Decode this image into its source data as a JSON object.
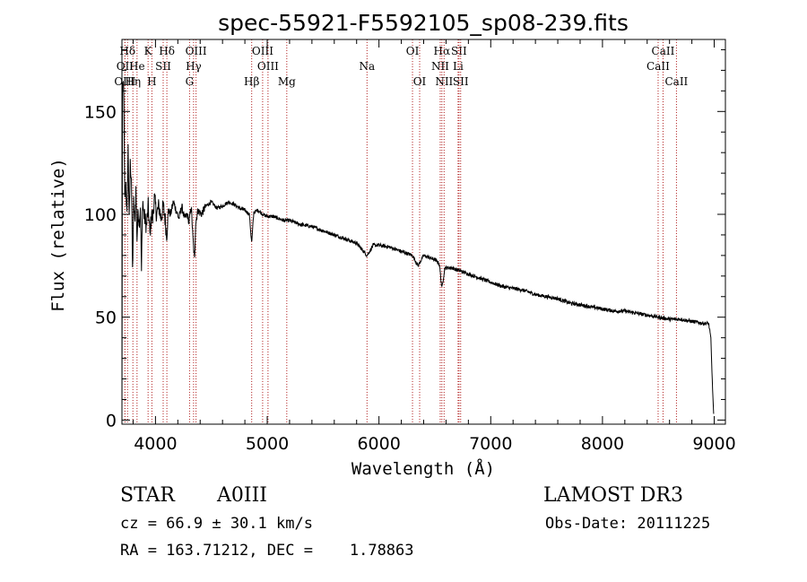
{
  "chart_data": {
    "type": "line",
    "title": "spec-55921-F5592105_sp08-239.fits",
    "xlabel": "Wavelength (Å)",
    "ylabel": "Flux (relative)",
    "xlim": [
      3700,
      9100
    ],
    "ylim": [
      -2,
      185
    ],
    "x_ticks": [
      4000,
      5000,
      6000,
      7000,
      8000,
      9000
    ],
    "y_ticks": [
      0,
      50,
      100,
      150
    ],
    "series": [
      {
        "name": "flux",
        "x": [
          3700,
          3705,
          3715,
          3725,
          3735,
          3745,
          3755,
          3765,
          3775,
          3785,
          3795,
          3805,
          3815,
          3825,
          3835,
          3845,
          3855,
          3865,
          3875,
          3885,
          3895,
          3905,
          3920,
          3935,
          3950,
          3965,
          3975,
          3990,
          4010,
          4030,
          4050,
          4070,
          4090,
          4101,
          4115,
          4135,
          4160,
          4185,
          4210,
          4235,
          4260,
          4285,
          4300,
          4320,
          4340,
          4350,
          4360,
          4380,
          4410,
          4450,
          4500,
          4550,
          4600,
          4650,
          4700,
          4750,
          4800,
          4840,
          4861,
          4880,
          4920,
          4960,
          5000,
          5050,
          5100,
          5150,
          5200,
          5250,
          5300,
          5400,
          5500,
          5600,
          5700,
          5800,
          5893,
          5950,
          6000,
          6100,
          6200,
          6300,
          6350,
          6400,
          6450,
          6500,
          6540,
          6563,
          6590,
          6650,
          6700,
          6750,
          6800,
          6900,
          7000,
          7100,
          7200,
          7300,
          7400,
          7500,
          7600,
          7700,
          7800,
          7900,
          8000,
          8100,
          8200,
          8300,
          8400,
          8500,
          8600,
          8700,
          8800,
          8900,
          8950,
          8970,
          8985,
          8995
        ],
        "values": [
          0,
          158,
          165,
          108,
          115,
          98,
          132,
          96,
          124,
          118,
          72,
          106,
          96,
          112,
          88,
          102,
          96,
          104,
          72,
          108,
          100,
          98,
          94,
          104,
          90,
          100,
          98,
          108,
          100,
          104,
          98,
          104,
          96,
          88,
          102,
          100,
          106,
          102,
          98,
          104,
          98,
          100,
          96,
          104,
          84,
          78,
          96,
          102,
          100,
          104,
          106,
          103,
          104,
          106,
          105,
          103,
          102,
          100,
          86,
          101,
          102,
          100,
          99,
          99,
          98,
          97,
          97,
          96,
          95,
          94,
          92,
          90,
          88,
          86,
          80,
          85,
          85,
          84,
          82,
          80,
          75,
          80,
          79,
          78,
          76,
          64,
          74,
          74,
          73,
          72,
          71,
          69,
          67,
          65,
          64,
          63,
          61,
          60,
          59,
          57,
          56,
          55,
          54,
          53,
          53,
          52,
          51,
          50,
          49,
          49,
          48,
          47,
          47,
          40,
          15,
          3
        ]
      }
    ],
    "line_markers": [
      {
        "label": "Hδ",
        "x": 3750,
        "row": 1
      },
      {
        "label": "OII",
        "x": 3727,
        "row": 2
      },
      {
        "label": "OIII",
        "x": 3727,
        "row": 3
      },
      {
        "label": "K",
        "x": 3934,
        "row": 1
      },
      {
        "label": "He",
        "x": 3835,
        "row": 2
      },
      {
        "label": "Hη",
        "x": 3798,
        "row": 3
      },
      {
        "label": "SII",
        "x": 4069,
        "row": 2
      },
      {
        "label": "H",
        "x": 3968,
        "row": 3
      },
      {
        "label": "Hδ",
        "x": 4102,
        "row": 1
      },
      {
        "label": "OIII",
        "x": 4363,
        "row": 1
      },
      {
        "label": "Hγ",
        "x": 4341,
        "row": 2
      },
      {
        "label": "G",
        "x": 4305,
        "row": 3
      },
      {
        "label": "OIII",
        "x": 4959,
        "row": 1
      },
      {
        "label": "OIII",
        "x": 5007,
        "row": 2
      },
      {
        "label": "Hβ",
        "x": 4861,
        "row": 3
      },
      {
        "label": "Mg",
        "x": 5175,
        "row": 3
      },
      {
        "label": "Na",
        "x": 5893,
        "row": 2
      },
      {
        "label": "OI",
        "x": 6300,
        "row": 1
      },
      {
        "label": "OI",
        "x": 6364,
        "row": 3
      },
      {
        "label": "Hα",
        "x": 6563,
        "row": 1
      },
      {
        "label": "SII",
        "x": 6716,
        "row": 1
      },
      {
        "label": "NII",
        "x": 6548,
        "row": 2
      },
      {
        "label": "Li",
        "x": 6708,
        "row": 2
      },
      {
        "label": "NII",
        "x": 6583,
        "row": 3
      },
      {
        "label": "SII",
        "x": 6731,
        "row": 3
      },
      {
        "label": "CaII",
        "x": 8542,
        "row": 1
      },
      {
        "label": "CaII",
        "x": 8498,
        "row": 2
      },
      {
        "label": "CaII",
        "x": 8662,
        "row": 3
      }
    ],
    "line_color": "#b22222"
  },
  "info": {
    "object_class": "STAR",
    "subclass": "A0III",
    "survey": "LAMOST DR3",
    "redshift": "cz = 66.9 ± 30.1 km/s",
    "obs_date": "Obs-Date: 20111225",
    "coords": "RA = 163.71212, DEC =    1.78863"
  }
}
